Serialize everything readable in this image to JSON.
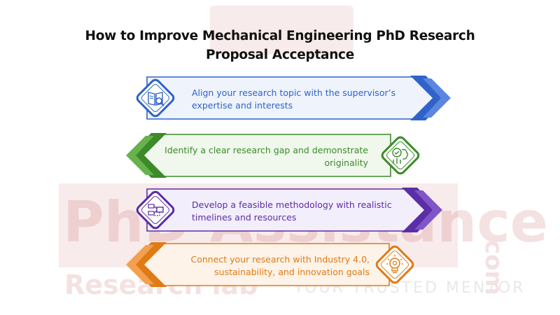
{
  "title": {
    "line1": "How to Improve Mechanical Engineering PhD Research",
    "line2": "Proposal Acceptance"
  },
  "steps": [
    {
      "line1": "Align your research topic with the supervisor’s",
      "line2": "expertise and interests",
      "icon": "book-search-icon",
      "color": "#2f63c9"
    },
    {
      "line1": "Identify a clear research gap and demonstrate",
      "line2": "originality",
      "icon": "brain-check-icon",
      "color": "#3c8a2a"
    },
    {
      "line1": "Develop a feasible methodology with realistic",
      "line2": "timelines and resources",
      "icon": "flowchart-icon",
      "color": "#5a2ea6"
    },
    {
      "line1": "Connect your research with Industry 4.0,",
      "line2": "sustainability, and innovation goals",
      "icon": "lightbulb-gear-icon",
      "color": "#e07a14"
    }
  ],
  "watermark": {
    "brand": "PhD Assistance",
    "domain": ".com",
    "lab": "Research lab",
    "tagline": "YOUR TRUSTED MENTOR"
  }
}
